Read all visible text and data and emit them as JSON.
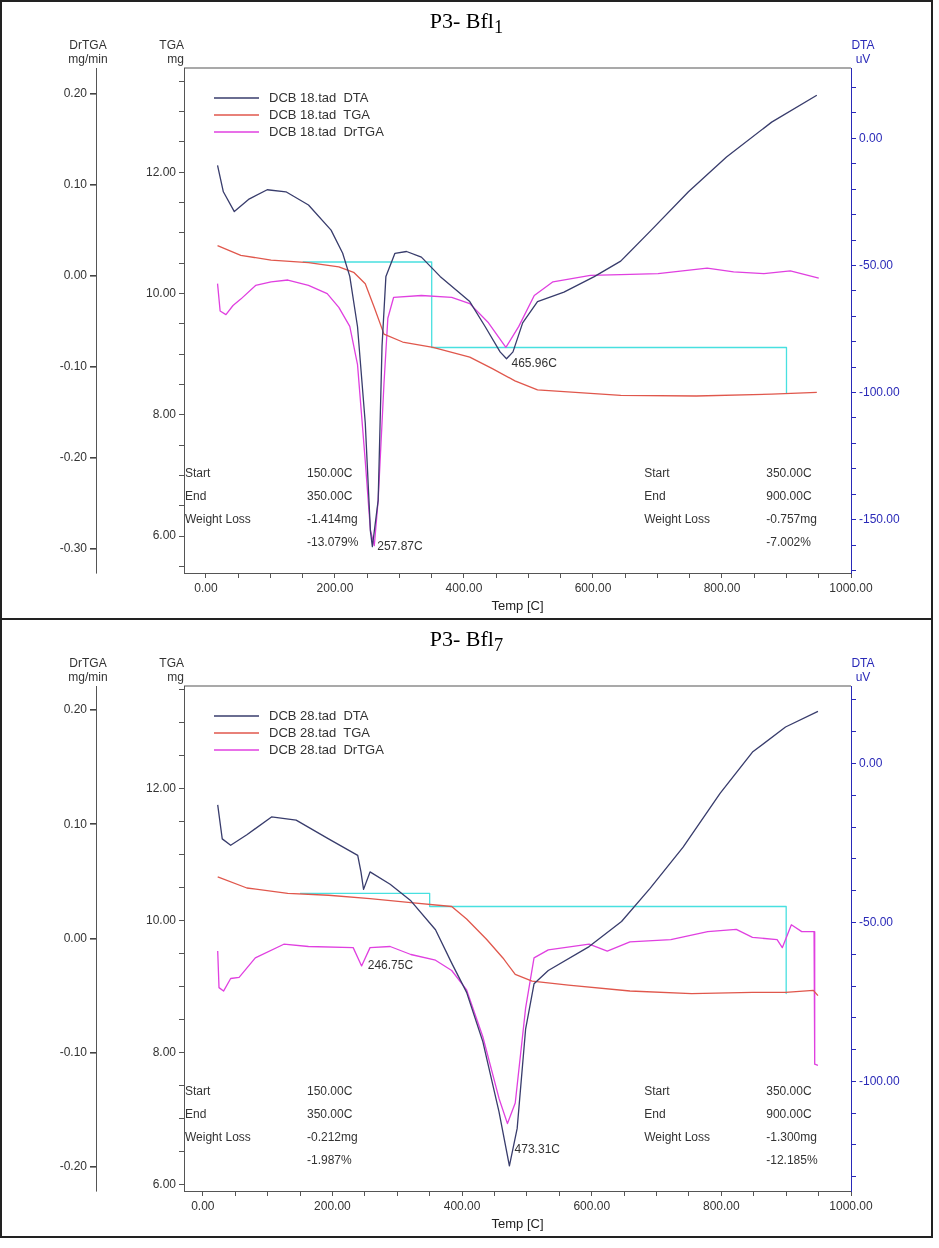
{
  "chart_data": [
    {
      "type": "line",
      "title": "P3- Bfl$_{1}$",
      "xlabel": "Temp [C]",
      "ylabel": "TGA\nmg",
      "y2label": "DTA\nuV",
      "y3label": "DrTGA\nmg/min",
      "legend": "top left",
      "marker": "none",
      "grid": false,
      "xlim": [
        -34,
        1000
      ],
      "xticks": [
        {
          "value": 0,
          "label": "0.00"
        },
        {
          "value": 50,
          "label": null
        },
        {
          "value": 100,
          "label": null
        },
        {
          "value": 150,
          "label": null
        },
        {
          "value": 200,
          "label": "200.00"
        },
        {
          "value": 250,
          "label": null
        },
        {
          "value": 300,
          "label": null
        },
        {
          "value": 350,
          "label": null
        },
        {
          "value": 400,
          "label": "400.00"
        },
        {
          "value": 450,
          "label": null
        },
        {
          "value": 500,
          "label": null
        },
        {
          "value": 550,
          "label": null
        },
        {
          "value": 600,
          "label": "600.00"
        },
        {
          "value": 650,
          "label": null
        },
        {
          "value": 700,
          "label": null
        },
        {
          "value": 750,
          "label": null
        },
        {
          "value": 800,
          "label": "800.00"
        },
        {
          "value": 850,
          "label": null
        },
        {
          "value": 900,
          "label": null
        },
        {
          "value": 950,
          "label": null
        },
        {
          "value": 1000,
          "label": "1000.00"
        }
      ],
      "ylim": [
        5.39,
        13.72
      ],
      "yticks": [
        {
          "value": 5.5,
          "label": null
        },
        {
          "value": 6,
          "label": "6.00"
        },
        {
          "value": 6.5,
          "label": null
        },
        {
          "value": 7,
          "label": null
        },
        {
          "value": 7.5,
          "label": null
        },
        {
          "value": 8,
          "label": "8.00"
        },
        {
          "value": 8.5,
          "label": null
        },
        {
          "value": 9,
          "label": null
        },
        {
          "value": 9.5,
          "label": null
        },
        {
          "value": 10,
          "label": "10.00"
        },
        {
          "value": 10.5,
          "label": null
        },
        {
          "value": 11,
          "label": null
        },
        {
          "value": 11.5,
          "label": null
        },
        {
          "value": 12,
          "label": "12.00"
        },
        {
          "value": 12.5,
          "label": null
        },
        {
          "value": 13,
          "label": null
        },
        {
          "value": 13.5,
          "label": null
        }
      ],
      "y2lim": [
        -171,
        27.7
      ],
      "y2ticks": [
        {
          "value": -170,
          "label": null
        },
        {
          "value": -160,
          "label": null
        },
        {
          "value": -150,
          "label": "-150.00"
        },
        {
          "value": -140,
          "label": null
        },
        {
          "value": -130,
          "label": null
        },
        {
          "value": -120,
          "label": null
        },
        {
          "value": -110,
          "label": null
        },
        {
          "value": -100,
          "label": "-100.00"
        },
        {
          "value": -90,
          "label": null
        },
        {
          "value": -80,
          "label": null
        },
        {
          "value": -70,
          "label": null
        },
        {
          "value": -60,
          "label": null
        },
        {
          "value": -50,
          "label": "-50.00"
        },
        {
          "value": -40,
          "label": null
        },
        {
          "value": -30,
          "label": null
        },
        {
          "value": -20,
          "label": null
        },
        {
          "value": -10,
          "label": null
        },
        {
          "value": 0,
          "label": "0.00"
        },
        {
          "value": 10,
          "label": null
        },
        {
          "value": 20,
          "label": null
        }
      ],
      "y3lim": [
        -0.327,
        0.228
      ],
      "y3ticks": [
        {
          "value": -0.3,
          "label": "-0.30"
        },
        {
          "value": -0.2,
          "label": "-0.20"
        },
        {
          "value": -0.1,
          "label": "-0.10"
        },
        {
          "value": 0,
          "label": "0.00"
        },
        {
          "value": 0.1,
          "label": "0.10"
        },
        {
          "value": 0.2,
          "label": "0.20"
        }
      ],
      "series": [
        {
          "name": "DCB 18.tad  DTA",
          "color": "#383c6c",
          "axis": "y2",
          "x": [
            18,
            27,
            44,
            66,
            95,
            124,
            159,
            194,
            212,
            223,
            235,
            247,
            255,
            258,
            267,
            273,
            279,
            293,
            311,
            334,
            363,
            409,
            433,
            456,
            466,
            476,
            491,
            514,
            555,
            602,
            643,
            690,
            748,
            807,
            877,
            947
          ],
          "values": [
            -10.6,
            -21,
            -28.8,
            -24,
            -20.2,
            -21,
            -26.2,
            -36.1,
            -45.2,
            -54.3,
            -74.1,
            -112,
            -154.5,
            -160.6,
            -142.4,
            -81.7,
            -54.3,
            -45.2,
            -44.5,
            -46.7,
            -54.3,
            -64.2,
            -74.1,
            -84,
            -86.7,
            -84,
            -72.6,
            -64.2,
            -60.5,
            -54.4,
            -48.3,
            -36.2,
            -21,
            -7.3,
            6.4,
            17
          ]
        },
        {
          "name": "DCB 18.tad  TGA",
          "color": "#e0574c",
          "x": [
            18,
            54,
            101,
            159,
            206,
            229,
            247,
            261,
            276,
            305,
            352,
            409,
            444,
            479,
            514,
            643,
            760,
            877,
            947
          ],
          "values": [
            10.79,
            10.63,
            10.55,
            10.51,
            10.44,
            10.35,
            10.16,
            9.77,
            9.33,
            9.2,
            9.11,
            8.95,
            8.76,
            8.56,
            8.41,
            8.32,
            8.31,
            8.34,
            8.37
          ]
        },
        {
          "name": "DCB 18.tad  DrTGA",
          "color": "#e040e0",
          "axis": "y3",
          "x": [
            18,
            22,
            31,
            42,
            54,
            77,
            101,
            127,
            159,
            188,
            206,
            223,
            235,
            247,
            255,
            261,
            267,
            276,
            282,
            291,
            334,
            381,
            409,
            438,
            465,
            485,
            509,
            538,
            596,
            643,
            701,
            777,
            818,
            865,
            906,
            950
          ],
          "values": [
            -0.009,
            -0.039,
            -0.043,
            -0.033,
            -0.026,
            -0.011,
            -0.007,
            -0.005,
            -0.011,
            -0.02,
            -0.035,
            -0.056,
            -0.098,
            -0.204,
            -0.28,
            -0.297,
            -0.247,
            -0.119,
            -0.047,
            -0.024,
            -0.022,
            -0.024,
            -0.031,
            -0.052,
            -0.079,
            -0.056,
            -0.022,
            -0.007,
            0,
            0.001,
            0.002,
            0.008,
            0.004,
            0.002,
            0.005,
            -0.003
          ]
        },
        {
          "color": "#48e0e0",
          "x": [
            150,
            350,
            350,
            900,
            900
          ],
          "values": [
            10.52,
            10.52,
            9.11,
            9.11,
            8.36
          ]
        }
      ],
      "annotations": [
        {
          "text": "257.87C",
          "x": 257.87,
          "y": 5.83
        },
        {
          "text": "465.96C",
          "x": 465.96,
          "y": 8.85
        },
        "Start\t150.00C\nEnd\t350.00C\nWeight Loss\t-1.414mg\n\t-13.079%",
        "Start\t350.00C\nEnd\t900.00C\nWeight Loss\t-0.757mg\n\t-7.002%"
      ]
    },
    {
      "type": "line",
      "title": "P3- Bfl$_{7}$",
      "xlabel": "Temp [C]",
      "ylabel": "TGA\nmg",
      "y2label": "DTA\nuV",
      "y3label": "DrTGA\nmg/min",
      "legend": "top left",
      "marker": "none",
      "grid": false,
      "xlim": [
        -29,
        1000
      ],
      "xticks": [
        {
          "value": 0,
          "label": "0.00"
        },
        {
          "value": 50,
          "label": null
        },
        {
          "value": 100,
          "label": null
        },
        {
          "value": 150,
          "label": null
        },
        {
          "value": 200,
          "label": "200.00"
        },
        {
          "value": 250,
          "label": null
        },
        {
          "value": 300,
          "label": null
        },
        {
          "value": 350,
          "label": null
        },
        {
          "value": 400,
          "label": "400.00"
        },
        {
          "value": 450,
          "label": null
        },
        {
          "value": 500,
          "label": null
        },
        {
          "value": 550,
          "label": null
        },
        {
          "value": 600,
          "label": "600.00"
        },
        {
          "value": 650,
          "label": null
        },
        {
          "value": 700,
          "label": null
        },
        {
          "value": 750,
          "label": null
        },
        {
          "value": 800,
          "label": "800.00"
        },
        {
          "value": 850,
          "label": null
        },
        {
          "value": 900,
          "label": null
        },
        {
          "value": 950,
          "label": null
        },
        {
          "value": 1000,
          "label": "1000.00"
        }
      ],
      "ylim": [
        5.9,
        13.55
      ],
      "yticks": [
        {
          "value": 6,
          "label": "6.00"
        },
        {
          "value": 6.5,
          "label": null
        },
        {
          "value": 7,
          "label": null
        },
        {
          "value": 7.5,
          "label": null
        },
        {
          "value": 8,
          "label": "8.00"
        },
        {
          "value": 8.5,
          "label": null
        },
        {
          "value": 9,
          "label": null
        },
        {
          "value": 9.5,
          "label": null
        },
        {
          "value": 10,
          "label": "10.00"
        },
        {
          "value": 10.5,
          "label": null
        },
        {
          "value": 11,
          "label": null
        },
        {
          "value": 11.5,
          "label": null
        },
        {
          "value": 12,
          "label": "12.00"
        },
        {
          "value": 12.5,
          "label": null
        },
        {
          "value": 13,
          "label": null
        },
        {
          "value": 13.5,
          "label": null
        }
      ],
      "y2lim": [
        -134.5,
        24.4
      ],
      "y2ticks": [
        {
          "value": -130,
          "label": null
        },
        {
          "value": -120,
          "label": null
        },
        {
          "value": -110,
          "label": null
        },
        {
          "value": -100,
          "label": "-100.00"
        },
        {
          "value": -90,
          "label": null
        },
        {
          "value": -80,
          "label": null
        },
        {
          "value": -70,
          "label": null
        },
        {
          "value": -60,
          "label": null
        },
        {
          "value": -50,
          "label": "-50.00"
        },
        {
          "value": -40,
          "label": null
        },
        {
          "value": -30,
          "label": null
        },
        {
          "value": -20,
          "label": null
        },
        {
          "value": -10,
          "label": null
        },
        {
          "value": 0,
          "label": "0.00"
        },
        {
          "value": 10,
          "label": null
        },
        {
          "value": 20,
          "label": null
        }
      ],
      "y3lim": [
        -0.221,
        0.221
      ],
      "y3ticks": [
        {
          "value": -0.2,
          "label": "-0.20"
        },
        {
          "value": -0.1,
          "label": "-0.10"
        },
        {
          "value": 0,
          "label": "0.00"
        },
        {
          "value": 0.1,
          "label": "0.10"
        },
        {
          "value": 0.2,
          "label": "0.20"
        }
      ],
      "series": [
        {
          "name": "DCB 28.tad  DTA",
          "color": "#383c6c",
          "axis": "y2",
          "x": [
            23,
            30,
            43,
            68,
            106,
            144,
            194,
            239,
            244,
            248,
            258,
            289,
            321,
            359,
            384,
            407,
            432,
            457,
            473,
            485,
            498,
            511,
            533,
            596,
            646,
            690,
            741,
            798,
            848,
            899,
            949
          ],
          "values": [
            -13,
            -23.7,
            -25.7,
            -22.4,
            -16.8,
            -17.8,
            -23.7,
            -28.9,
            -34.1,
            -39.6,
            -34.1,
            -38,
            -43.2,
            -52.3,
            -62.8,
            -72,
            -87.5,
            -109.6,
            -126.6,
            -114.8,
            -83.6,
            -69.3,
            -65.1,
            -57.6,
            -49.7,
            -39.3,
            -26.3,
            -9.4,
            3.6,
            11.5,
            16.4
          ]
        },
        {
          "name": "DCB 28.tad  TGA",
          "color": "#e0574c",
          "x": [
            23,
            68,
            131,
            194,
            258,
            321,
            384,
            407,
            438,
            463,
            482,
            508,
            564,
            659,
            754,
            848,
            899,
            942,
            949
          ],
          "values": [
            10.66,
            10.49,
            10.41,
            10.38,
            10.33,
            10.27,
            10.21,
            10.02,
            9.71,
            9.43,
            9.18,
            9.08,
            9.02,
            8.93,
            8.89,
            8.91,
            8.91,
            8.94,
            8.86
          ]
        },
        {
          "name": "DCB 28.tad  DrTGA",
          "color": "#e040e0",
          "axis": "y3",
          "x": [
            23,
            25,
            32,
            43,
            56,
            81,
            125,
            163,
            232,
            245,
            258,
            289,
            321,
            359,
            384,
            407,
            432,
            457,
            470,
            482,
            498,
            511,
            533,
            596,
            624,
            659,
            722,
            779,
            823,
            848,
            886,
            894,
            908,
            924,
            943,
            944,
            949
          ],
          "values": [
            -0.011,
            -0.043,
            -0.046,
            -0.035,
            -0.034,
            -0.017,
            -0.005,
            -0.007,
            -0.008,
            -0.024,
            -0.008,
            -0.007,
            -0.014,
            -0.019,
            -0.028,
            -0.045,
            -0.086,
            -0.14,
            -0.162,
            -0.144,
            -0.061,
            -0.017,
            -0.01,
            -0.005,
            -0.011,
            -0.003,
            -0.001,
            0.006,
            0.008,
            0.001,
            -0.001,
            -0.008,
            0.012,
            0.006,
            0.006,
            -0.11,
            -0.111
          ]
        },
        {
          "color": "#48e0e0",
          "x": [
            150,
            350,
            350,
            900,
            900
          ],
          "values": [
            10.41,
            10.41,
            10.21,
            10.21,
            8.89
          ]
        }
      ],
      "annotations": [
        {
          "text": "246.75C",
          "x": 246.75,
          "y": 9.31
        },
        {
          "text": "473.31C",
          "x": 473.31,
          "y": 6.52
        },
        "Start\t150.00C\nEnd\t350.00C\nWeight Loss\t-0.212mg\n\t-1.987%",
        "Start\t350.00C\nEnd\t900.00C\nWeight Loss\t-1.300mg\n\t-12.185%"
      ]
    }
  ]
}
